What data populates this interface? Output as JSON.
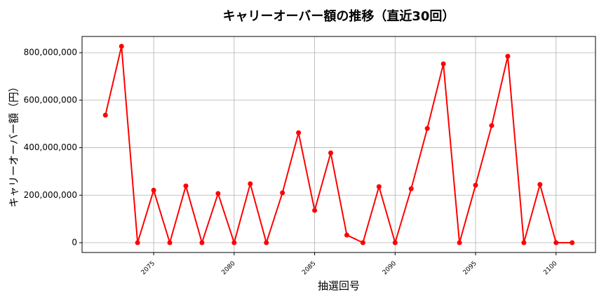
{
  "chart_data": {
    "type": "line",
    "title": "キャリーオーバー額の推移（直近30回）",
    "x_label": "抽選回号",
    "y_label": "キャリーオーバー額（円）",
    "x": [
      2072,
      2073,
      2074,
      2075,
      2076,
      2077,
      2078,
      2079,
      2080,
      2081,
      2082,
      2083,
      2084,
      2085,
      2086,
      2087,
      2088,
      2089,
      2090,
      2091,
      2092,
      2093,
      2094,
      2095,
      2096,
      2097,
      2098,
      2099,
      2100,
      2101
    ],
    "series": [
      {
        "color": "#ff0000",
        "values": [
          537000000,
          827000000,
          0,
          221000000,
          0,
          239000000,
          0,
          207000000,
          0,
          248000000,
          0,
          210000000,
          463000000,
          136000000,
          378000000,
          32000000,
          0,
          236000000,
          0,
          227000000,
          481000000,
          753000000,
          0,
          242000000,
          493000000,
          785000000,
          0,
          245000000,
          0,
          0
        ]
      }
    ],
    "xlim": [
      2070.55,
      2102.45
    ],
    "ylim": [
      -41350000,
      868350000
    ],
    "xticks": [
      2075,
      2080,
      2085,
      2090,
      2095,
      2100
    ],
    "yticks": [
      {
        "value": 0,
        "label": "0"
      },
      {
        "value": 200000000,
        "label": "200,000,000"
      },
      {
        "value": 400000000,
        "label": "400,000,000"
      },
      {
        "value": 600000000,
        "label": "600,000,000"
      },
      {
        "value": 800000000,
        "label": "800,000,000"
      }
    ],
    "grid": true
  }
}
